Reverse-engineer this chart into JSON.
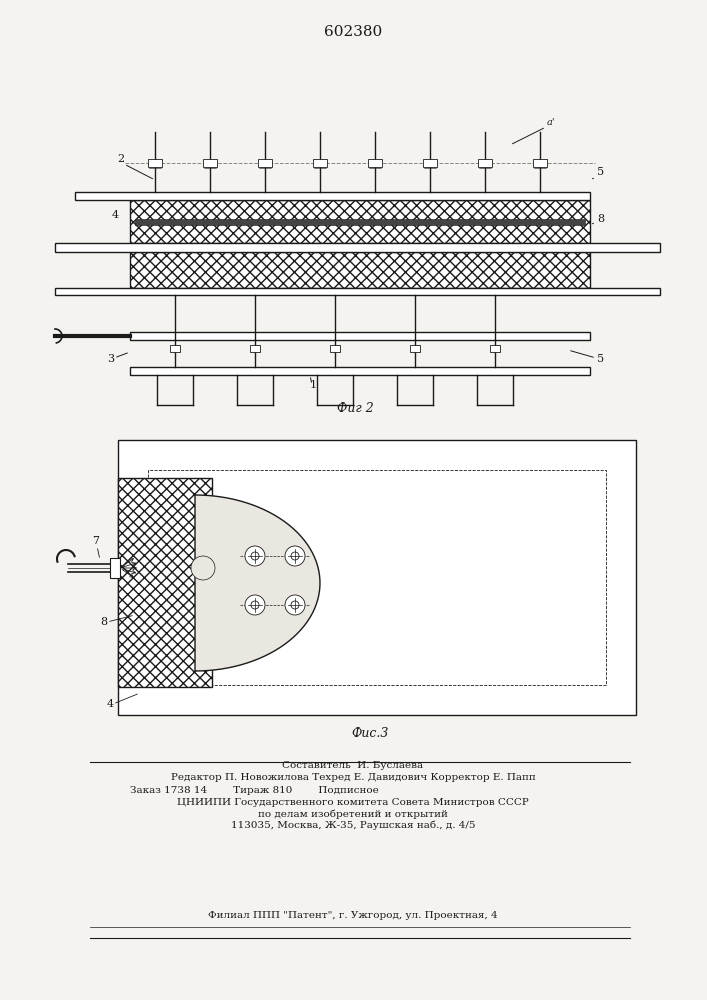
{
  "title": "602380",
  "fig2_caption": "Фиг 2",
  "fig3_caption": "Фис.3",
  "bg_color": "#f5f3f0",
  "line_color": "#1a1a1a",
  "footer_lines": [
    "Составитель  И. Буслаева",
    "Редактор П. Новожилова Техред Е. Давидович Корректор Е. Папп",
    "Заказ 1738 14        Тираж 810        Подписное",
    "ЦНИИПИ Государственного комитета Совета Министров СССР",
    "по делам изобретений и открытий",
    "113035, Москва, Ж-35, Раушская наб., д. 4/5",
    "Филиал ППП \"Патент\", г. Ужгород, ул. Проектная, 4"
  ]
}
